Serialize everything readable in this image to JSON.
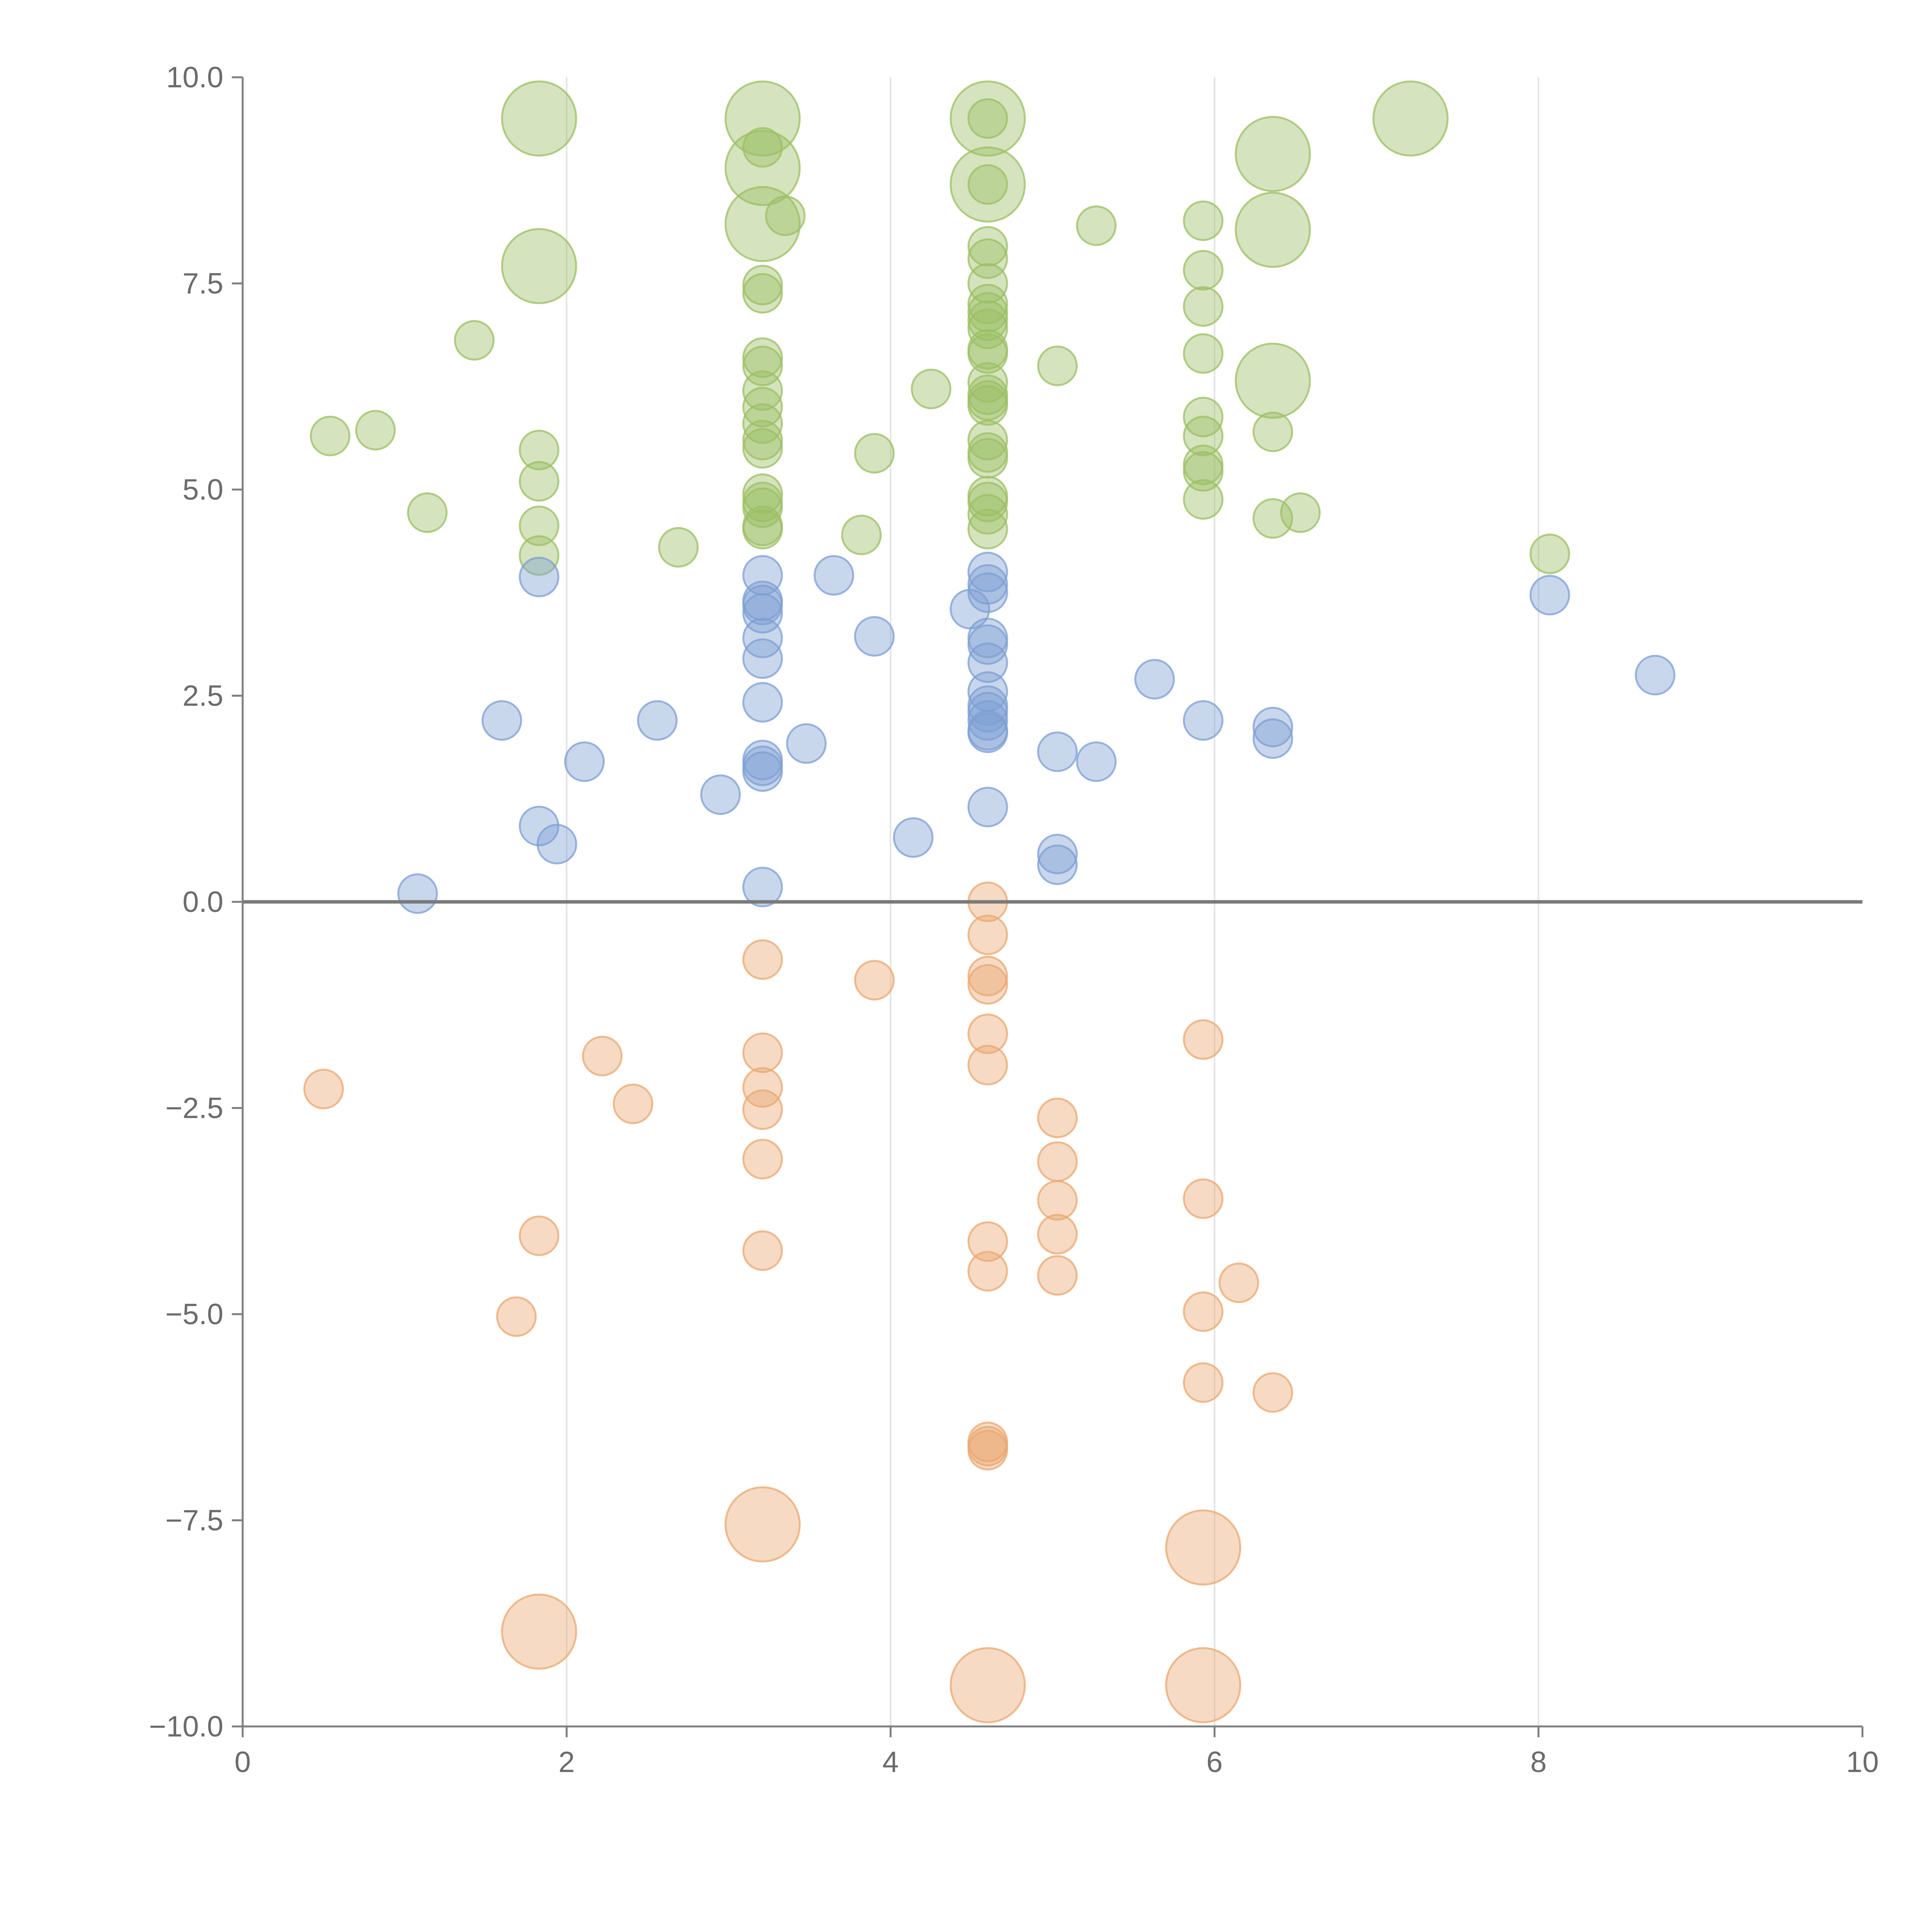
{
  "chart_data": {
    "type": "scatter",
    "title": "",
    "xlabel": "",
    "ylabel": "",
    "xlim": [
      0,
      10
    ],
    "ylim": [
      -10,
      10
    ],
    "grid": "vertical",
    "x_ticks": [
      0,
      2,
      4,
      6,
      8,
      10
    ],
    "y_ticks": [
      10,
      7.5,
      5,
      2.5,
      0,
      -2.5,
      -5,
      -7.5,
      -10
    ],
    "x_tick_labels": [
      "0",
      "2",
      "4",
      "6",
      "8",
      "10"
    ],
    "y_tick_labels": [
      "10.0",
      "7.5",
      "5.0",
      "2.5",
      "0.0",
      "−2.5",
      "−5.0",
      "−7.5",
      "−10.0"
    ],
    "series": [
      {
        "name": "green",
        "color": "#9cbf63",
        "points": [
          [
            1.83,
            9.5,
            3
          ],
          [
            3.21,
            9.5,
            3
          ],
          [
            4.6,
            9.5,
            3
          ],
          [
            7.21,
            9.5,
            3
          ],
          [
            3.21,
            8.9,
            3
          ],
          [
            6.36,
            9.07,
            3
          ],
          [
            4.6,
            8.7,
            3
          ],
          [
            3.21,
            8.22,
            3
          ],
          [
            6.36,
            8.15,
            3
          ],
          [
            1.83,
            7.71,
            3
          ],
          [
            6.36,
            6.32,
            3
          ],
          [
            3.21,
            9.15,
            1
          ],
          [
            4.6,
            9.5,
            1
          ],
          [
            4.6,
            8.7,
            1
          ],
          [
            3.35,
            8.32,
            1
          ],
          [
            5.27,
            8.2,
            1
          ],
          [
            5.93,
            8.26,
            1
          ],
          [
            4.6,
            7.95,
            1
          ],
          [
            4.6,
            7.8,
            1
          ],
          [
            5.93,
            7.66,
            1
          ],
          [
            4.6,
            7.5,
            1
          ],
          [
            3.21,
            7.48,
            1
          ],
          [
            3.21,
            7.38,
            1
          ],
          [
            4.6,
            7.25,
            1
          ],
          [
            5.93,
            7.22,
            1
          ],
          [
            4.6,
            7.15,
            1
          ],
          [
            4.6,
            7.05,
            1
          ],
          [
            4.6,
            6.95,
            1
          ],
          [
            1.43,
            6.81,
            1
          ],
          [
            4.6,
            6.7,
            1
          ],
          [
            4.6,
            6.65,
            1
          ],
          [
            5.93,
            6.65,
            1
          ],
          [
            3.21,
            6.6,
            1
          ],
          [
            3.21,
            6.5,
            1
          ],
          [
            5.03,
            6.5,
            1
          ],
          [
            4.6,
            6.3,
            1
          ],
          [
            4.25,
            6.22,
            1
          ],
          [
            3.21,
            6.2,
            1
          ],
          [
            4.6,
            6.15,
            1
          ],
          [
            4.6,
            6.08,
            1
          ],
          [
            4.6,
            6.02,
            1
          ],
          [
            3.21,
            6.0,
            1
          ],
          [
            5.93,
            5.88,
            1
          ],
          [
            3.21,
            5.8,
            1
          ],
          [
            0.82,
            5.72,
            1
          ],
          [
            6.36,
            5.7,
            1
          ],
          [
            5.93,
            5.65,
            1
          ],
          [
            0.54,
            5.65,
            1
          ],
          [
            3.21,
            5.6,
            1
          ],
          [
            4.6,
            5.6,
            1
          ],
          [
            3.21,
            5.5,
            1
          ],
          [
            1.83,
            5.48,
            1
          ],
          [
            3.9,
            5.44,
            1
          ],
          [
            4.6,
            5.45,
            1
          ],
          [
            4.6,
            5.38,
            1
          ],
          [
            5.93,
            5.3,
            1
          ],
          [
            5.93,
            5.22,
            1
          ],
          [
            1.83,
            5.1,
            1
          ],
          [
            3.21,
            4.95,
            1
          ],
          [
            4.6,
            4.92,
            1
          ],
          [
            3.21,
            4.85,
            1
          ],
          [
            5.93,
            4.88,
            1
          ],
          [
            4.6,
            4.85,
            1
          ],
          [
            3.21,
            4.78,
            1
          ],
          [
            1.14,
            4.72,
            1
          ],
          [
            6.53,
            4.72,
            1
          ],
          [
            4.6,
            4.7,
            1
          ],
          [
            6.36,
            4.65,
            1
          ],
          [
            1.83,
            4.56,
            1
          ],
          [
            3.21,
            4.56,
            1
          ],
          [
            3.21,
            4.52,
            1
          ],
          [
            4.6,
            4.52,
            1
          ],
          [
            3.82,
            4.45,
            1
          ],
          [
            2.69,
            4.3,
            1
          ],
          [
            1.83,
            4.2,
            1
          ],
          [
            8.07,
            4.22,
            1
          ]
        ]
      },
      {
        "name": "blue",
        "color": "#7e9fd3",
        "points": [
          [
            4.6,
            4.0,
            1
          ],
          [
            3.21,
            3.96,
            1
          ],
          [
            3.65,
            3.96,
            1
          ],
          [
            1.83,
            3.94,
            1
          ],
          [
            4.6,
            3.85,
            1
          ],
          [
            4.6,
            3.75,
            1
          ],
          [
            8.07,
            3.72,
            1
          ],
          [
            3.21,
            3.65,
            1
          ],
          [
            3.21,
            3.6,
            1
          ],
          [
            4.49,
            3.55,
            1
          ],
          [
            3.21,
            3.5,
            1
          ],
          [
            3.9,
            3.22,
            1
          ],
          [
            3.21,
            3.2,
            1
          ],
          [
            4.6,
            3.2,
            1
          ],
          [
            4.6,
            3.12,
            1
          ],
          [
            3.21,
            2.95,
            1
          ],
          [
            4.6,
            2.9,
            1
          ],
          [
            8.72,
            2.75,
            1
          ],
          [
            5.63,
            2.7,
            1
          ],
          [
            4.6,
            2.55,
            1
          ],
          [
            3.21,
            2.42,
            1
          ],
          [
            4.6,
            2.38,
            1
          ],
          [
            4.6,
            2.3,
            1
          ],
          [
            5.93,
            2.2,
            1
          ],
          [
            1.6,
            2.2,
            1
          ],
          [
            2.56,
            2.2,
            1
          ],
          [
            4.6,
            2.2,
            1
          ],
          [
            6.36,
            2.12,
            1
          ],
          [
            4.6,
            2.08,
            1
          ],
          [
            4.6,
            2.05,
            1
          ],
          [
            6.36,
            1.98,
            1
          ],
          [
            3.48,
            1.92,
            1
          ],
          [
            5.03,
            1.82,
            1
          ],
          [
            3.21,
            1.72,
            1
          ],
          [
            5.27,
            1.7,
            1
          ],
          [
            2.11,
            1.7,
            1
          ],
          [
            3.21,
            1.65,
            1
          ],
          [
            3.21,
            1.58,
            1
          ],
          [
            2.95,
            1.3,
            1
          ],
          [
            4.6,
            1.15,
            1
          ],
          [
            1.83,
            0.92,
            1
          ],
          [
            4.14,
            0.78,
            1
          ],
          [
            1.94,
            0.7,
            1
          ],
          [
            5.03,
            0.58,
            1
          ],
          [
            5.03,
            0.45,
            1
          ],
          [
            3.21,
            0.18,
            1
          ],
          [
            1.08,
            0.1,
            1
          ]
        ]
      },
      {
        "name": "orange",
        "color": "#e9a871",
        "points": [
          [
            4.6,
            0.0,
            1
          ],
          [
            4.6,
            -0.4,
            1
          ],
          [
            3.21,
            -0.7,
            1
          ],
          [
            4.6,
            -0.9,
            1
          ],
          [
            3.9,
            -0.95,
            1
          ],
          [
            4.6,
            -1.0,
            1
          ],
          [
            4.6,
            -1.6,
            1
          ],
          [
            5.93,
            -1.67,
            1
          ],
          [
            3.21,
            -1.83,
            1
          ],
          [
            2.22,
            -1.87,
            1
          ],
          [
            4.6,
            -1.98,
            1
          ],
          [
            0.5,
            -2.27,
            1
          ],
          [
            3.21,
            -2.25,
            1
          ],
          [
            2.41,
            -2.45,
            1
          ],
          [
            3.21,
            -2.52,
            1
          ],
          [
            5.03,
            -2.62,
            1
          ],
          [
            3.21,
            -3.12,
            1
          ],
          [
            5.03,
            -3.15,
            1
          ],
          [
            5.93,
            -3.6,
            1
          ],
          [
            5.03,
            -3.62,
            1
          ],
          [
            5.03,
            -4.03,
            1
          ],
          [
            1.83,
            -4.05,
            1
          ],
          [
            4.6,
            -4.12,
            1
          ],
          [
            3.21,
            -4.23,
            1
          ],
          [
            4.6,
            -4.48,
            1
          ],
          [
            5.03,
            -4.53,
            1
          ],
          [
            6.15,
            -4.62,
            1
          ],
          [
            5.93,
            -4.97,
            1
          ],
          [
            1.69,
            -5.03,
            1
          ],
          [
            5.93,
            -5.83,
            1
          ],
          [
            6.36,
            -5.95,
            1
          ],
          [
            4.6,
            -6.55,
            1
          ],
          [
            4.6,
            -6.6,
            1
          ],
          [
            4.6,
            -6.65,
            1
          ],
          [
            3.21,
            -7.55,
            3
          ],
          [
            5.93,
            -7.83,
            3
          ],
          [
            1.83,
            -8.85,
            3
          ],
          [
            4.6,
            -9.5,
            3
          ],
          [
            5.93,
            -9.5,
            3
          ]
        ]
      }
    ]
  }
}
